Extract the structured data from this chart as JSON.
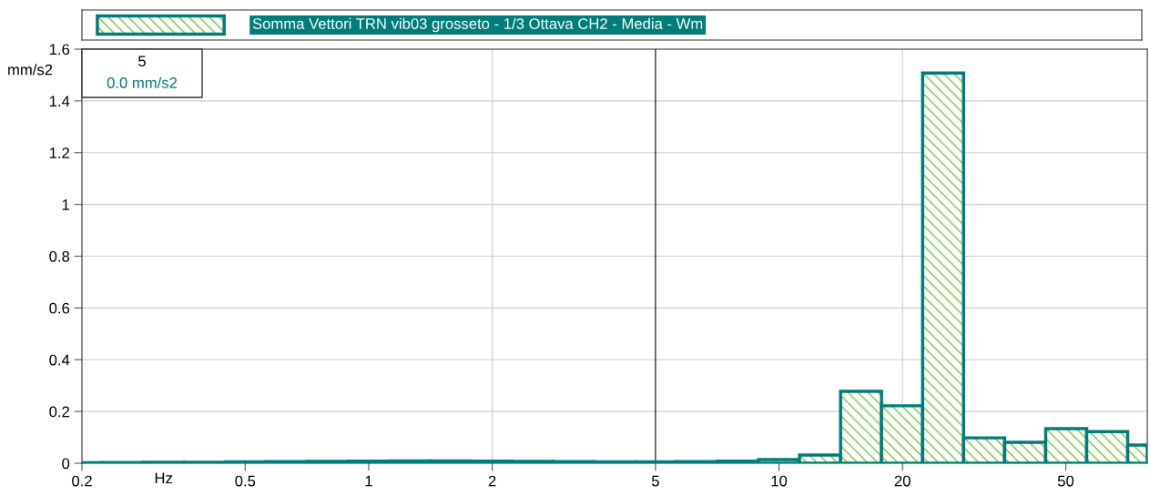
{
  "chart_data": {
    "type": "histogram",
    "bins": [
      0.2,
      0.224,
      0.282,
      0.355,
      0.447,
      0.562,
      0.708,
      0.891,
      1.122,
      1.413,
      1.778,
      2.239,
      2.818,
      3.548,
      4.467,
      5.623,
      7.079,
      8.913,
      11.22,
      14.13,
      17.78,
      22.39,
      28.18,
      35.48,
      44.67,
      56.23,
      70.79,
      79
    ],
    "series": [
      {
        "name": "Somma Vettori TRN vib03 grosseto - 1/3 Ottava CH2 - Media - Wm",
        "color": "#007d7a",
        "values": [
          0.002,
          0.003,
          0.004,
          0.004,
          0.005,
          0.006,
          0.007,
          0.008,
          0.009,
          0.009,
          0.008,
          0.007,
          0.006,
          0.005,
          0.005,
          0.006,
          0.008,
          0.014,
          0.032,
          0.278,
          0.222,
          1.508,
          0.098,
          0.081,
          0.134,
          0.122,
          0.07
        ]
      }
    ],
    "xlabel": "Hz",
    "ylabel": "mm/s2",
    "log": "x",
    "xlim": [
      0.2,
      79
    ],
    "xticks": [
      0.2,
      0.5,
      1,
      2,
      5,
      10,
      20,
      50
    ],
    "ylim": [
      0,
      1.6
    ],
    "yticks": [
      0,
      0.2,
      0.4,
      0.6,
      0.8,
      1,
      1.2,
      1.4,
      1.6
    ],
    "grid": "y",
    "ref_lines": [
      {
        "axis": "x",
        "value": 5,
        "color": "#000000"
      },
      {
        "axis": "x",
        "value": 2,
        "color": "#cccccc"
      },
      {
        "axis": "x",
        "value": 20,
        "color": "#cccccc"
      }
    ],
    "annotations": [
      "5",
      "0.0 mm/s2"
    ],
    "legend": "top"
  }
}
